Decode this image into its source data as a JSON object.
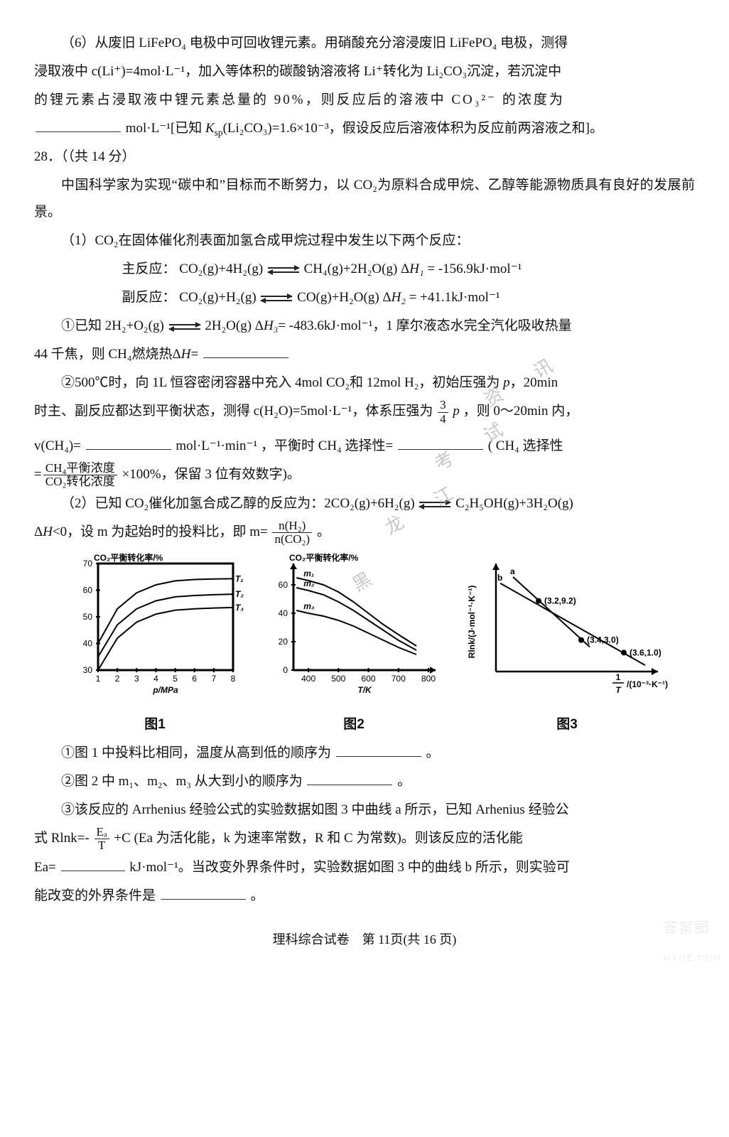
{
  "q27_6": {
    "line1": "（6）从废旧 LiFePO₄ 电极中可回收锂元素。用硝酸充分溶浸废旧 LiFePO₄ 电极，测得",
    "line2a": "浸取液中 c(Li⁺)=4mol·L⁻¹，加入等体积的碳酸钠溶液将 Li⁺转化为 Li₂CO₃沉淀，若沉淀中",
    "line3": "的锂元素占浸取液中锂元素总量的 90%，则反应后的溶液中 CO₃²⁻ 的浓度为",
    "line4a": "mol·L⁻¹[已知 ",
    "ksp_i": "K",
    "line4b": "(Li₂CO₃)=1.6×10⁻³，假设反应后溶液体积为反应前两溶液之和]。"
  },
  "q28": {
    "num": "28．（（共 14 分）",
    "intro": "中国科学家为实现“碳中和”目标而不断努力，以 CO₂为原料合成甲烷、乙醇等能源物质具有良好的发展前景。",
    "p1_head": "（1）CO₂在固体催化剂表面加氢合成甲烷过程中发生以下两个反应：",
    "main_lbl": "主反应：",
    "main_rxn_l": "CO₂(g)+4H₂(g)",
    "main_rxn_r": "CH₄(g)+2H₂O(g) Δ",
    "main_h": "H₁",
    "main_val": "= -156.9kJ·mol⁻¹",
    "side_lbl": "副反应：",
    "side_rxn_l": "CO₂(g)+H₂(g)",
    "side_rxn_r": "CO(g)+H₂O(g) Δ",
    "side_h": "H₂",
    "side_val": "= +41.1kJ·mol⁻¹",
    "sub1a": "①已知 2H₂+O₂(g)",
    "sub1b": "2H₂O(g) Δ",
    "sub1_h": "H₃",
    "sub1c": "= -483.6kJ·mol⁻¹，1 摩尔液态水完全汽化吸收热量",
    "sub1d": "44 千焦，则 CH₄燃烧热Δ",
    "sub1_hh": "H",
    "sub1e": "=",
    "sub2a": "②500℃时，向 1L 恒容密闭容器中充入 4mol CO₂和 12mol H₂，初始压强为 ",
    "sub2_p": "p",
    "sub2b": "，20min",
    "sub2c": "时主、副反应都达到平衡状态，测得 c(H₂O)=5mol·L⁻¹，体系压强为",
    "sub2_pfrac_num": "3",
    "sub2_pfrac_den": "4",
    "sub2d": " ，则 0～20min 内，",
    "sub2e": "v(CH₄)=",
    "sub2_unit": "mol·L⁻¹·min⁻¹",
    "sub2f": "，平衡时 CH₄ 选择性=",
    "sub2g": "( CH₄ 选择性",
    "sub2_fr_num": "CH₄平衡浓度",
    "sub2_fr_den": "CO₂转化浓度",
    "sub2h": "×100%，保留 3 位有效数字)。",
    "p2a": "（2）已知 CO₂催化加氢合成乙醇的反应为：2CO₂(g)+6H₂(g)",
    "p2b": "C₂H₅OH(g)+3H₂O(g)",
    "p2c": "Δ",
    "p2_h": "H",
    "p2d": "<0，设 m 为起始时的投料比，即 m=",
    "p2_fr_num": "n(H₂)",
    "p2_fr_den": "n(CO₂)",
    "p2e": "。",
    "q2_1": "①图 1 中投料比相同，温度从高到低的顺序为",
    "q2_1end": "。",
    "q2_2a": "②图 2 中 m₁、m₂、m₃ 从大到小的顺序为",
    "q2_2end": "。",
    "q2_3a": "③该反应的 Arrhenius 经验公式的实验数据如图 3 中曲线 a 所示，已知 Arhenius 经验公",
    "q2_3b": "式 Rlnk=-",
    "q2_3_fr_num": "Eₐ",
    "q2_3_fr_den": "T",
    "q2_3c": "+C (Ea 为活化能，k 为速率常数，R 和 C 为常数)。则该反应的活化能",
    "q2_3d": "Ea=",
    "q2_3unit": " kJ·mol⁻¹。当改变外界条件时，实验数据如图 3 中的曲线 b 所示，则实验可",
    "q2_3e": "能改变的外界条件是",
    "q2_3end": "。"
  },
  "figs": {
    "fig1": {
      "title": "图1",
      "ylabel": "CO₂平衡转化率/%",
      "xlabel": "p/MPa",
      "yticks": [
        30,
        40,
        50,
        60,
        70
      ],
      "xticks": [
        1,
        2,
        3,
        4,
        5,
        6,
        7,
        8
      ],
      "series": [
        {
          "label": "T₁",
          "pts": [
            [
              1,
              40
            ],
            [
              2,
              53
            ],
            [
              3,
              59
            ],
            [
              4,
              62
            ],
            [
              5,
              63.5
            ],
            [
              6,
              64
            ],
            [
              7,
              64.2
            ],
            [
              8,
              64.3
            ]
          ]
        },
        {
          "label": "T₂",
          "pts": [
            [
              1,
              35
            ],
            [
              2,
              47
            ],
            [
              3,
              53
            ],
            [
              4,
              56
            ],
            [
              5,
              57.5
            ],
            [
              6,
              58
            ],
            [
              7,
              58.3
            ],
            [
              8,
              58.5
            ]
          ]
        },
        {
          "label": "T₃",
          "pts": [
            [
              1,
              30
            ],
            [
              2,
              42
            ],
            [
              3,
              48
            ],
            [
              4,
              51
            ],
            [
              5,
              52.5
            ],
            [
              6,
              53
            ],
            [
              7,
              53.3
            ],
            [
              8,
              53.5
            ]
          ]
        }
      ],
      "colors": {
        "axis": "#000",
        "line": "#000"
      },
      "linewidth": 2
    },
    "fig2": {
      "title": "图2",
      "ylabel": "CO₂平衡转化率/%",
      "xlabel": "T/K",
      "yticks": [
        0,
        20,
        40,
        60
      ],
      "xticks": [
        400,
        500,
        600,
        700,
        800
      ],
      "series": [
        {
          "label": "m₁",
          "pts": [
            [
              360,
              65
            ],
            [
              400,
              63
            ],
            [
              450,
              60
            ],
            [
              500,
              55
            ],
            [
              550,
              48
            ],
            [
              600,
              40
            ],
            [
              650,
              32
            ],
            [
              700,
              25
            ],
            [
              760,
              17
            ]
          ]
        },
        {
          "label": "m₂",
          "pts": [
            [
              360,
              58
            ],
            [
              400,
              56
            ],
            [
              450,
              53
            ],
            [
              500,
              48
            ],
            [
              550,
              42
            ],
            [
              600,
              35
            ],
            [
              650,
              28
            ],
            [
              700,
              21
            ],
            [
              760,
              14
            ]
          ]
        },
        {
          "label": "m₃",
          "pts": [
            [
              360,
              42
            ],
            [
              400,
              40
            ],
            [
              450,
              38
            ],
            [
              500,
              35
            ],
            [
              550,
              31
            ],
            [
              600,
              26
            ],
            [
              650,
              21
            ],
            [
              700,
              16
            ],
            [
              760,
              11
            ]
          ]
        }
      ],
      "colors": {
        "axis": "#000",
        "line": "#000"
      },
      "linewidth": 2
    },
    "fig3": {
      "title": "图3",
      "ylabel": "Rlnk/(J·mol⁻¹·K⁻¹)",
      "xlabel_html": "1/T /(10⁻³·K⁻¹)",
      "points": [
        {
          "x": 3.2,
          "y": 9.2,
          "lbl": "(3.2,9.2)"
        },
        {
          "x": 3.4,
          "y": 3.0,
          "lbl": "(3.4,3.0)"
        },
        {
          "x": 3.6,
          "y": 1.0,
          "lbl": "(3.6,1.0)"
        }
      ],
      "lines": [
        {
          "label": "a",
          "from": [
            3.08,
            13
          ],
          "to": [
            3.44,
            1.9
          ]
        },
        {
          "label": "b",
          "from": [
            3.02,
            12
          ],
          "to": [
            3.7,
            -1
          ]
        }
      ],
      "colors": {
        "axis": "#000",
        "line": "#000",
        "point": "#000"
      },
      "linewidth": 2,
      "marker_r": 4
    }
  },
  "footer": "理科综合试卷　第 11页(共 16 页)",
  "watermark": "黑龙江考试资讯"
}
